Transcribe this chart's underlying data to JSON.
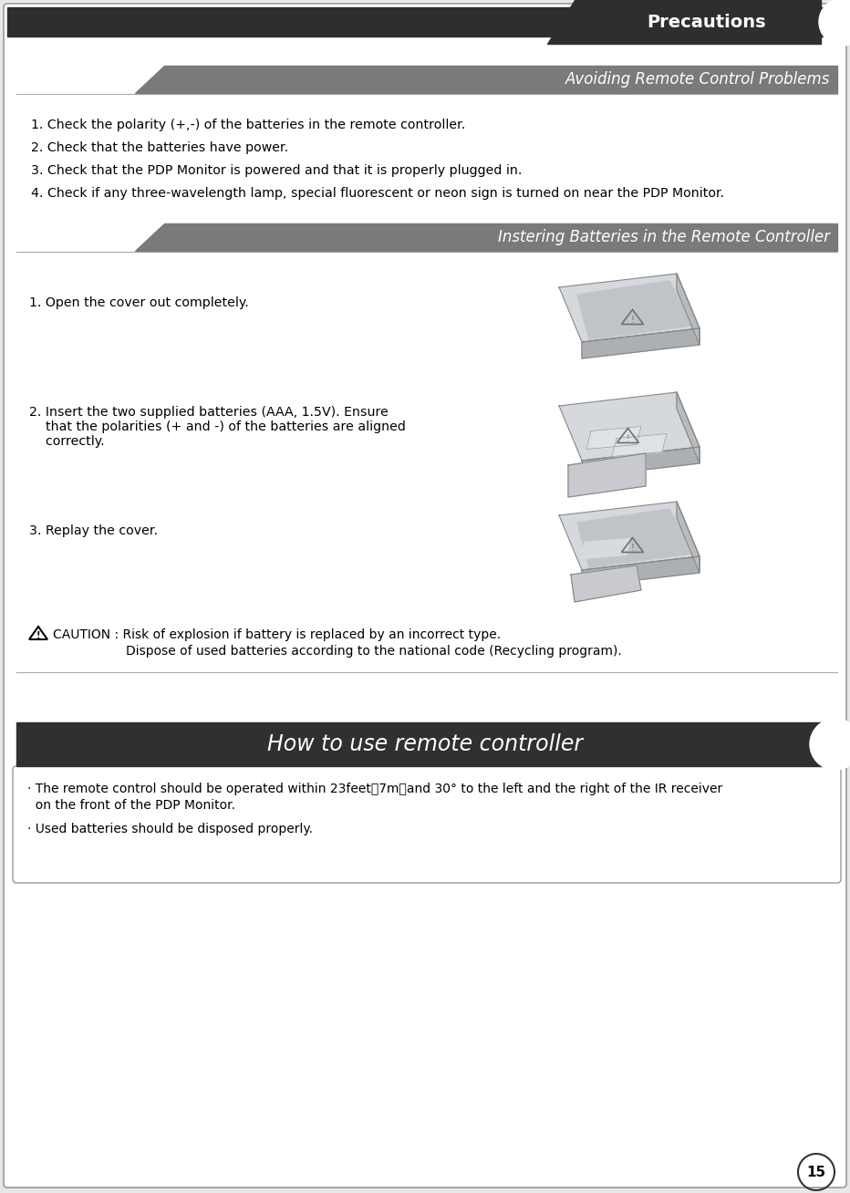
{
  "bg_color": "#e8e8e8",
  "page_bg": "#ffffff",
  "dark_header_color": "#2e2e2e",
  "gray_header_color": "#7a7a7a",
  "title_precautions": "Precautions",
  "title_avoiding": "Avoiding Remote Control Problems",
  "title_instering": "Instering Batteries in the Remote Controller",
  "title_how_to_use": "How to use remote controller",
  "avoiding_items": [
    "1. Check the polarity (+,-) of the batteries in the remote controller.",
    "2. Check that the batteries have power.",
    "3. Check that the PDP Monitor is powered and that it is properly plugged in.",
    "4. Check if any three-wavelength lamp, special fluorescent or neon sign is turned on near the PDP Monitor."
  ],
  "battery_step1": "1. Open the cover out completely.",
  "battery_step2": "2. Insert the two supplied batteries (AAA, 1.5V). Ensure\n    that the polarities (+ and -) of the batteries are aligned\n    correctly.",
  "battery_step3": "3. Replay the cover.",
  "caution_line1": "CAUTION : Risk of explosion if battery is replaced by an incorrect type.",
  "caution_line2": "Dispose of used batteries according to the national code (Recycling program).",
  "how_line1": "· The remote control should be operated within 23feet（7m）and 30° to the left and the right of the IR receiver",
  "how_line1b": "  on the front of the PDP Monitor.",
  "how_line2": "· Used batteries should be disposed properly.",
  "page_number": "15",
  "remote_body_color": "#c8cdd2",
  "remote_body_color2": "#d8dde2",
  "remote_body_color3": "#b0b5ba",
  "remote_shadow_color": "#909090"
}
